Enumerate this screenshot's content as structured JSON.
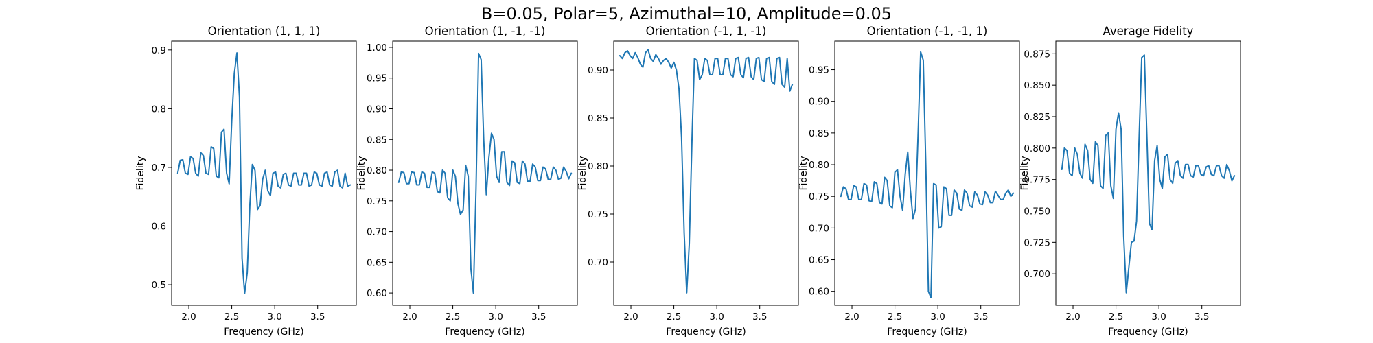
{
  "figure": {
    "suptitle": "B=0.05, Polar=5, Azimuthal=10, Amplitude=0.05",
    "series_color": "#1f77b4"
  },
  "chart_data": [
    {
      "type": "line",
      "title": "Orientation (1, 1, 1)",
      "xlabel": "Frequency (GHz)",
      "ylabel": "Fidelity",
      "xlim": [
        1.8,
        3.95
      ],
      "ylim": [
        0.465,
        0.915
      ],
      "xticks": [
        2.0,
        2.5,
        3.0,
        3.5
      ],
      "xtick_labels": [
        "2.0",
        "2.5",
        "3.0",
        "3.5"
      ],
      "yticks": [
        0.5,
        0.6,
        0.7,
        0.8,
        0.9
      ],
      "ytick_labels": [
        "0.5",
        "0.6",
        "0.7",
        "0.8",
        "0.9"
      ],
      "dip_center": 2.65,
      "x": [
        1.87,
        1.9,
        1.93,
        1.96,
        1.99,
        2.02,
        2.05,
        2.08,
        2.11,
        2.14,
        2.17,
        2.2,
        2.23,
        2.26,
        2.29,
        2.32,
        2.35,
        2.38,
        2.41,
        2.44,
        2.47,
        2.5,
        2.53,
        2.56,
        2.59,
        2.62,
        2.65,
        2.68,
        2.71,
        2.74,
        2.77,
        2.8,
        2.83,
        2.86,
        2.89,
        2.92,
        2.95,
        2.98,
        3.01,
        3.04,
        3.07,
        3.1,
        3.13,
        3.16,
        3.19,
        3.22,
        3.25,
        3.28,
        3.31,
        3.34,
        3.37,
        3.4,
        3.43,
        3.46,
        3.49,
        3.52,
        3.55,
        3.58,
        3.61,
        3.64,
        3.67,
        3.7,
        3.73,
        3.76,
        3.79,
        3.82,
        3.85,
        3.88
      ],
      "y": [
        0.69,
        0.712,
        0.713,
        0.69,
        0.688,
        0.718,
        0.715,
        0.69,
        0.685,
        0.725,
        0.72,
        0.69,
        0.688,
        0.735,
        0.732,
        0.685,
        0.682,
        0.76,
        0.765,
        0.69,
        0.672,
        0.78,
        0.86,
        0.895,
        0.82,
        0.545,
        0.485,
        0.52,
        0.635,
        0.705,
        0.695,
        0.628,
        0.635,
        0.68,
        0.695,
        0.66,
        0.652,
        0.69,
        0.692,
        0.668,
        0.665,
        0.688,
        0.69,
        0.67,
        0.668,
        0.69,
        0.69,
        0.67,
        0.67,
        0.69,
        0.69,
        0.668,
        0.67,
        0.692,
        0.69,
        0.67,
        0.668,
        0.69,
        0.692,
        0.67,
        0.668,
        0.692,
        0.695,
        0.668,
        0.665,
        0.69,
        0.668,
        0.67
      ]
    },
    {
      "type": "line",
      "title": "Orientation (1, -1, -1)",
      "xlabel": "Frequency (GHz)",
      "ylabel": "Fidelity",
      "xlim": [
        1.8,
        3.95
      ],
      "ylim": [
        0.58,
        1.01
      ],
      "xticks": [
        2.0,
        2.5,
        3.0,
        3.5
      ],
      "xtick_labels": [
        "2.0",
        "2.5",
        "3.0",
        "3.5"
      ],
      "yticks": [
        0.6,
        0.65,
        0.7,
        0.75,
        0.8,
        0.85,
        0.9,
        0.95,
        1.0
      ],
      "ytick_labels": [
        "0.60",
        "0.65",
        "0.70",
        "0.75",
        "0.80",
        "0.85",
        "0.90",
        "0.95",
        "1.00"
      ],
      "dip_center": 2.75,
      "x": [
        1.87,
        1.9,
        1.93,
        1.96,
        1.99,
        2.02,
        2.05,
        2.08,
        2.11,
        2.14,
        2.17,
        2.2,
        2.23,
        2.26,
        2.29,
        2.32,
        2.35,
        2.38,
        2.41,
        2.44,
        2.47,
        2.5,
        2.53,
        2.56,
        2.59,
        2.62,
        2.65,
        2.68,
        2.71,
        2.74,
        2.77,
        2.8,
        2.83,
        2.86,
        2.89,
        2.92,
        2.95,
        2.98,
        3.01,
        3.04,
        3.07,
        3.1,
        3.13,
        3.16,
        3.19,
        3.22,
        3.25,
        3.28,
        3.31,
        3.34,
        3.37,
        3.4,
        3.43,
        3.46,
        3.49,
        3.52,
        3.55,
        3.58,
        3.61,
        3.64,
        3.67,
        3.7,
        3.73,
        3.76,
        3.79,
        3.82,
        3.85,
        3.88
      ],
      "y": [
        0.78,
        0.797,
        0.796,
        0.778,
        0.778,
        0.797,
        0.796,
        0.776,
        0.776,
        0.797,
        0.795,
        0.772,
        0.772,
        0.797,
        0.795,
        0.765,
        0.763,
        0.8,
        0.795,
        0.755,
        0.75,
        0.8,
        0.79,
        0.745,
        0.728,
        0.735,
        0.808,
        0.79,
        0.64,
        0.6,
        0.77,
        0.99,
        0.98,
        0.85,
        0.76,
        0.82,
        0.86,
        0.85,
        0.79,
        0.78,
        0.83,
        0.83,
        0.78,
        0.775,
        0.815,
        0.812,
        0.78,
        0.778,
        0.815,
        0.81,
        0.782,
        0.782,
        0.81,
        0.805,
        0.783,
        0.783,
        0.805,
        0.802,
        0.785,
        0.785,
        0.805,
        0.8,
        0.785,
        0.787,
        0.805,
        0.798,
        0.786,
        0.795
      ]
    },
    {
      "type": "line",
      "title": "Orientation (-1, 1, -1)",
      "xlabel": "Frequency (GHz)",
      "ylabel": "Fidelity",
      "xlim": [
        1.8,
        3.95
      ],
      "ylim": [
        0.655,
        0.93
      ],
      "xticks": [
        2.0,
        2.5,
        3.0,
        3.5
      ],
      "xtick_labels": [
        "2.0",
        "2.5",
        "3.0",
        "3.5"
      ],
      "yticks": [
        0.7,
        0.75,
        0.8,
        0.85,
        0.9
      ],
      "ytick_labels": [
        "0.70",
        "0.75",
        "0.80",
        "0.85",
        "0.90"
      ],
      "dip_center": 2.63,
      "x": [
        1.87,
        1.9,
        1.93,
        1.96,
        1.99,
        2.02,
        2.05,
        2.08,
        2.11,
        2.14,
        2.17,
        2.2,
        2.23,
        2.26,
        2.29,
        2.32,
        2.35,
        2.38,
        2.41,
        2.44,
        2.47,
        2.5,
        2.53,
        2.56,
        2.59,
        2.62,
        2.65,
        2.68,
        2.71,
        2.74,
        2.77,
        2.8,
        2.83,
        2.86,
        2.89,
        2.92,
        2.95,
        2.98,
        3.01,
        3.04,
        3.07,
        3.1,
        3.13,
        3.16,
        3.19,
        3.22,
        3.25,
        3.28,
        3.31,
        3.34,
        3.37,
        3.4,
        3.43,
        3.46,
        3.49,
        3.52,
        3.55,
        3.58,
        3.61,
        3.64,
        3.67,
        3.7,
        3.73,
        3.76,
        3.79,
        3.82,
        3.85,
        3.88
      ],
      "y": [
        0.915,
        0.912,
        0.918,
        0.92,
        0.915,
        0.912,
        0.918,
        0.913,
        0.906,
        0.903,
        0.918,
        0.921,
        0.912,
        0.909,
        0.916,
        0.912,
        0.906,
        0.91,
        0.912,
        0.908,
        0.902,
        0.908,
        0.9,
        0.88,
        0.83,
        0.73,
        0.668,
        0.72,
        0.825,
        0.912,
        0.91,
        0.89,
        0.895,
        0.912,
        0.91,
        0.895,
        0.895,
        0.912,
        0.912,
        0.895,
        0.895,
        0.912,
        0.912,
        0.895,
        0.893,
        0.912,
        0.913,
        0.895,
        0.892,
        0.912,
        0.913,
        0.893,
        0.89,
        0.912,
        0.913,
        0.89,
        0.888,
        0.912,
        0.913,
        0.888,
        0.885,
        0.912,
        0.913,
        0.885,
        0.882,
        0.912,
        0.878,
        0.885
      ]
    },
    {
      "type": "line",
      "title": "Orientation (-1, -1, 1)",
      "xlabel": "Frequency (GHz)",
      "ylabel": "Fidelity",
      "xlim": [
        1.8,
        3.95
      ],
      "ylim": [
        0.578,
        0.995
      ],
      "xticks": [
        2.0,
        2.5,
        3.0,
        3.5
      ],
      "xtick_labels": [
        "2.0",
        "2.5",
        "3.0",
        "3.5"
      ],
      "yticks": [
        0.6,
        0.65,
        0.7,
        0.75,
        0.8,
        0.85,
        0.9,
        0.95
      ],
      "ytick_labels": [
        "0.60",
        "0.65",
        "0.70",
        "0.75",
        "0.80",
        "0.85",
        "0.90",
        "0.95"
      ],
      "dip_center": 2.93,
      "x": [
        1.87,
        1.9,
        1.93,
        1.96,
        1.99,
        2.02,
        2.05,
        2.08,
        2.11,
        2.14,
        2.17,
        2.2,
        2.23,
        2.26,
        2.29,
        2.32,
        2.35,
        2.38,
        2.41,
        2.44,
        2.47,
        2.5,
        2.53,
        2.56,
        2.59,
        2.62,
        2.65,
        2.68,
        2.71,
        2.74,
        2.77,
        2.8,
        2.83,
        2.86,
        2.89,
        2.92,
        2.95,
        2.98,
        3.01,
        3.04,
        3.07,
        3.1,
        3.13,
        3.16,
        3.19,
        3.22,
        3.25,
        3.28,
        3.31,
        3.34,
        3.37,
        3.4,
        3.43,
        3.46,
        3.49,
        3.52,
        3.55,
        3.58,
        3.61,
        3.64,
        3.67,
        3.7,
        3.73,
        3.76,
        3.79,
        3.82,
        3.85,
        3.88
      ],
      "y": [
        0.75,
        0.765,
        0.762,
        0.745,
        0.745,
        0.767,
        0.765,
        0.745,
        0.745,
        0.77,
        0.768,
        0.743,
        0.742,
        0.773,
        0.77,
        0.74,
        0.738,
        0.78,
        0.775,
        0.735,
        0.732,
        0.788,
        0.792,
        0.75,
        0.728,
        0.785,
        0.82,
        0.76,
        0.715,
        0.73,
        0.85,
        0.978,
        0.965,
        0.8,
        0.6,
        0.59,
        0.77,
        0.768,
        0.7,
        0.702,
        0.765,
        0.762,
        0.72,
        0.72,
        0.76,
        0.755,
        0.73,
        0.728,
        0.76,
        0.755,
        0.735,
        0.733,
        0.757,
        0.752,
        0.738,
        0.737,
        0.757,
        0.752,
        0.74,
        0.74,
        0.758,
        0.752,
        0.745,
        0.745,
        0.755,
        0.76,
        0.75,
        0.755
      ]
    },
    {
      "type": "line",
      "title": "Average Fidelity",
      "xlabel": "Frequency (GHz)",
      "ylabel": "Fidelity",
      "xlim": [
        1.8,
        3.95
      ],
      "ylim": [
        0.675,
        0.885
      ],
      "xticks": [
        2.0,
        2.5,
        3.0,
        3.5
      ],
      "xtick_labels": [
        "2.0",
        "2.5",
        "3.0",
        "3.5"
      ],
      "yticks": [
        0.7,
        0.725,
        0.75,
        0.775,
        0.8,
        0.825,
        0.85,
        0.875
      ],
      "ytick_labels": [
        "0.700",
        "0.725",
        "0.750",
        "0.775",
        "0.800",
        "0.825",
        "0.850",
        "0.875"
      ],
      "dip_center": 2.63,
      "x": [
        1.87,
        1.9,
        1.93,
        1.96,
        1.99,
        2.02,
        2.05,
        2.08,
        2.11,
        2.14,
        2.17,
        2.2,
        2.23,
        2.26,
        2.29,
        2.32,
        2.35,
        2.38,
        2.41,
        2.44,
        2.47,
        2.5,
        2.53,
        2.56,
        2.59,
        2.62,
        2.65,
        2.68,
        2.71,
        2.74,
        2.77,
        2.8,
        2.83,
        2.86,
        2.89,
        2.92,
        2.95,
        2.98,
        3.01,
        3.04,
        3.07,
        3.1,
        3.13,
        3.16,
        3.19,
        3.22,
        3.25,
        3.28,
        3.31,
        3.34,
        3.37,
        3.4,
        3.43,
        3.46,
        3.49,
        3.52,
        3.55,
        3.58,
        3.61,
        3.64,
        3.67,
        3.7,
        3.73,
        3.76,
        3.79,
        3.82,
        3.85,
        3.88
      ],
      "y": [
        0.783,
        0.8,
        0.798,
        0.78,
        0.778,
        0.8,
        0.795,
        0.78,
        0.776,
        0.803,
        0.798,
        0.775,
        0.772,
        0.805,
        0.802,
        0.77,
        0.768,
        0.81,
        0.812,
        0.77,
        0.76,
        0.815,
        0.828,
        0.815,
        0.73,
        0.685,
        0.705,
        0.725,
        0.726,
        0.742,
        0.81,
        0.872,
        0.874,
        0.81,
        0.74,
        0.735,
        0.79,
        0.802,
        0.775,
        0.768,
        0.793,
        0.795,
        0.775,
        0.772,
        0.788,
        0.79,
        0.778,
        0.776,
        0.787,
        0.787,
        0.778,
        0.777,
        0.786,
        0.786,
        0.779,
        0.778,
        0.785,
        0.786,
        0.779,
        0.778,
        0.786,
        0.786,
        0.778,
        0.776,
        0.787,
        0.782,
        0.774,
        0.778
      ]
    }
  ]
}
